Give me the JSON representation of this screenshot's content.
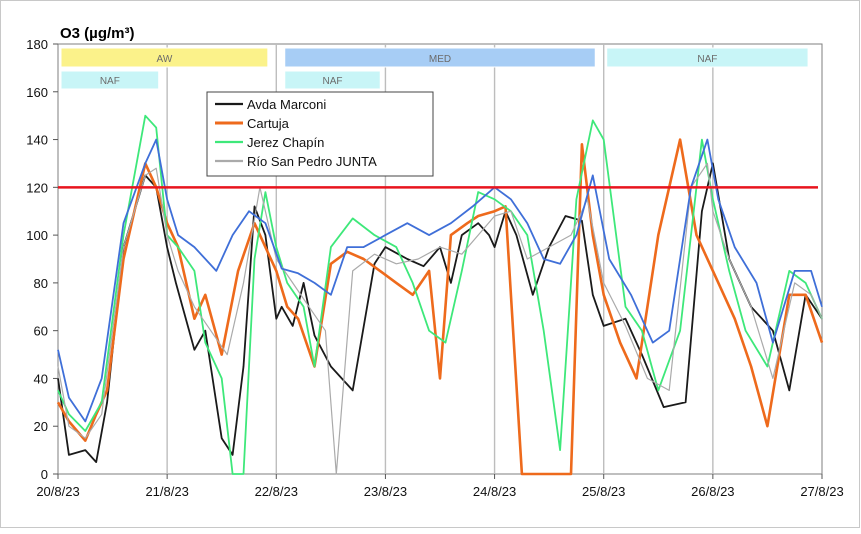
{
  "chart_data": {
    "type": "line",
    "title": "O3 (µg/m³)",
    "xlabel": "",
    "ylabel": "",
    "ylim": [
      0,
      180
    ],
    "yticks": [
      0,
      20,
      40,
      60,
      80,
      100,
      120,
      140,
      160,
      180
    ],
    "xlim_days": [
      0,
      7
    ],
    "xticks": [
      "20/8/23",
      "21/8/23",
      "22/8/23",
      "23/8/23",
      "24/8/23",
      "25/8/23",
      "26/8/23",
      "27/8/23"
    ],
    "grid": "vertical",
    "legend_placement": "top-center",
    "threshold": {
      "value": 120,
      "color": "#e8141e"
    },
    "bands_top": [
      {
        "label": "AW",
        "start": 0.0,
        "end": 1.95,
        "color": "#fbf28a"
      },
      {
        "label": "MED",
        "start": 2.05,
        "end": 4.95,
        "color": "#a7cdf5"
      },
      {
        "label": "NAF",
        "start": 5.0,
        "end": 6.9,
        "color": "#c8f5f7"
      }
    ],
    "bands_bottom": [
      {
        "label": "NAF",
        "start": 0.0,
        "end": 0.95,
        "color": "#c8f5f7"
      },
      {
        "label": "NAF",
        "start": 2.05,
        "end": 2.98,
        "color": "#c8f5f7"
      }
    ],
    "series": [
      {
        "name": "Avda Marconi",
        "color": "#1a1a1a",
        "x": [
          0,
          0.1,
          0.25,
          0.35,
          0.45,
          0.6,
          0.8,
          0.9,
          1.0,
          1.08,
          1.25,
          1.35,
          1.5,
          1.6,
          1.7,
          1.8,
          1.9,
          2.0,
          2.05,
          2.15,
          2.25,
          2.35,
          2.5,
          2.7,
          2.9,
          3.0,
          3.2,
          3.35,
          3.5,
          3.6,
          3.7,
          3.85,
          3.95,
          4.0,
          4.1,
          4.2,
          4.35,
          4.5,
          4.65,
          4.8,
          4.9,
          5.0,
          5.2,
          5.35,
          5.55,
          5.75,
          5.9,
          6.0,
          6.15,
          6.35,
          6.55,
          6.7,
          6.85,
          7.0
        ],
        "y": [
          40,
          8,
          10,
          5,
          30,
          95,
          125,
          120,
          95,
          80,
          52,
          60,
          15,
          8,
          45,
          112,
          100,
          65,
          70,
          62,
          80,
          58,
          45,
          35,
          88,
          95,
          90,
          87,
          95,
          80,
          100,
          105,
          100,
          95,
          110,
          100,
          75,
          95,
          108,
          106,
          75,
          62,
          65,
          50,
          28,
          30,
          110,
          130,
          90,
          70,
          60,
          35,
          75,
          65
        ]
      },
      {
        "name": "Cartuja",
        "color": "#ee6a1c",
        "x": [
          0,
          0.1,
          0.25,
          0.35,
          0.45,
          0.6,
          0.8,
          0.9,
          1.0,
          1.1,
          1.25,
          1.35,
          1.5,
          1.65,
          1.8,
          1.9,
          2.0,
          2.1,
          2.2,
          2.35,
          2.5,
          2.65,
          2.8,
          2.95,
          3.1,
          3.25,
          3.4,
          3.5,
          3.6,
          3.75,
          3.85,
          4.0,
          4.1,
          4.25,
          4.4,
          4.55,
          4.7,
          4.8,
          4.9,
          5.0,
          5.15,
          5.3,
          5.5,
          5.7,
          5.85,
          6.0,
          6.2,
          6.35,
          6.5,
          6.7,
          6.85,
          7.0
        ],
        "y": [
          30,
          22,
          14,
          25,
          35,
          90,
          130,
          120,
          105,
          95,
          65,
          75,
          50,
          85,
          105,
          95,
          85,
          70,
          65,
          45,
          88,
          93,
          90,
          85,
          80,
          75,
          85,
          40,
          100,
          105,
          108,
          110,
          112,
          0,
          0,
          0,
          0,
          138,
          100,
          75,
          55,
          40,
          100,
          140,
          100,
          85,
          65,
          45,
          20,
          75,
          75,
          55
        ]
      },
      {
        "name": "Jerez Chapín",
        "color": "#3ee87a",
        "x": [
          0,
          0.1,
          0.25,
          0.4,
          0.6,
          0.8,
          0.9,
          1.0,
          1.1,
          1.25,
          1.35,
          1.5,
          1.6,
          1.7,
          1.8,
          1.9,
          2.0,
          2.1,
          2.25,
          2.35,
          2.5,
          2.7,
          2.9,
          3.1,
          3.25,
          3.4,
          3.55,
          3.7,
          3.85,
          4.0,
          4.15,
          4.3,
          4.45,
          4.6,
          4.75,
          4.9,
          5.0,
          5.2,
          5.35,
          5.5,
          5.7,
          5.9,
          6.0,
          6.15,
          6.3,
          6.5,
          6.7,
          6.85,
          7.0
        ],
        "y": [
          35,
          25,
          18,
          30,
          100,
          150,
          145,
          100,
          95,
          85,
          55,
          40,
          0,
          0,
          90,
          118,
          95,
          80,
          70,
          45,
          95,
          107,
          100,
          95,
          80,
          60,
          55,
          85,
          118,
          115,
          110,
          100,
          60,
          10,
          115,
          148,
          140,
          70,
          60,
          35,
          60,
          140,
          115,
          85,
          60,
          45,
          85,
          80,
          65
        ]
      },
      {
        "name": "Río San Pedro JUNTA",
        "color": "#aaaaaa",
        "x": [
          0,
          0.1,
          0.25,
          0.4,
          0.6,
          0.8,
          0.9,
          1.0,
          1.1,
          1.25,
          1.4,
          1.55,
          1.7,
          1.85,
          2.0,
          2.15,
          2.3,
          2.45,
          2.55,
          2.7,
          2.9,
          3.1,
          3.3,
          3.5,
          3.7,
          3.85,
          4.0,
          4.15,
          4.3,
          4.5,
          4.7,
          4.85,
          5.0,
          5.2,
          5.4,
          5.6,
          5.8,
          5.95,
          6.0,
          6.15,
          6.35,
          6.55,
          6.75,
          6.9,
          7.0
        ],
        "y": [
          45,
          20,
          15,
          25,
          95,
          125,
          128,
          100,
          85,
          70,
          60,
          50,
          80,
          120,
          90,
          80,
          70,
          60,
          0,
          85,
          92,
          88,
          90,
          95,
          92,
          100,
          108,
          110,
          90,
          95,
          100,
          115,
          80,
          62,
          40,
          35,
          120,
          130,
          110,
          90,
          70,
          40,
          80,
          75,
          65
        ]
      },
      {
        "name": "",
        "color": "#3f6fd8",
        "x": [
          0,
          0.1,
          0.25,
          0.4,
          0.6,
          0.8,
          0.9,
          1.0,
          1.1,
          1.25,
          1.45,
          1.6,
          1.75,
          1.9,
          2.05,
          2.2,
          2.35,
          2.5,
          2.65,
          2.8,
          3.0,
          3.2,
          3.4,
          3.6,
          3.8,
          4.0,
          4.15,
          4.3,
          4.45,
          4.6,
          4.75,
          4.9,
          5.05,
          5.25,
          5.45,
          5.6,
          5.8,
          5.95,
          6.05,
          6.2,
          6.4,
          6.55,
          6.75,
          6.9,
          7.0
        ],
        "y": [
          52,
          32,
          22,
          40,
          105,
          130,
          140,
          115,
          100,
          95,
          85,
          100,
          110,
          105,
          86,
          84,
          80,
          75,
          95,
          95,
          100,
          105,
          100,
          105,
          112,
          120,
          115,
          105,
          90,
          88,
          100,
          125,
          90,
          75,
          55,
          60,
          120,
          140,
          115,
          95,
          80,
          55,
          85,
          85,
          70
        ]
      }
    ]
  }
}
